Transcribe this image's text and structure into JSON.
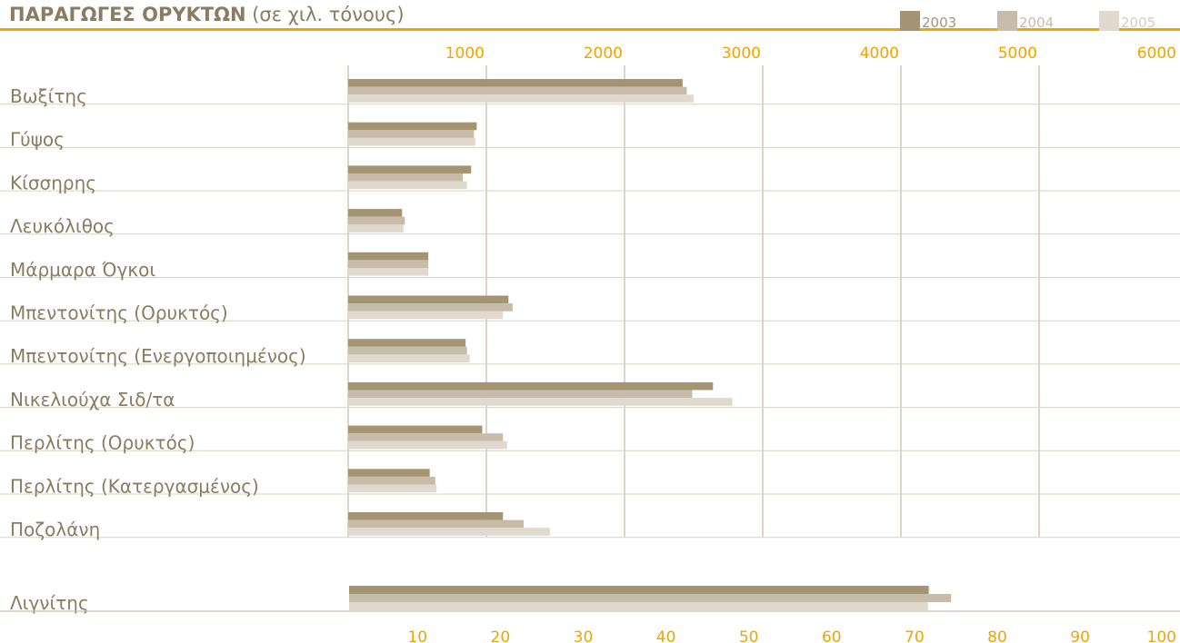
{
  "title_bold": "ΠΑΡΑΓΩΓΕΣ ΟΡΥΚΤΩΝ",
  "title_rest": " (σε χιλ. τόνους)",
  "colors": {
    "accent": "#f0a500",
    "label": "#8a7c62",
    "grid": "#b8ab95"
  },
  "chart_data": [
    {
      "type": "bar",
      "orientation": "horizontal",
      "title": "ΠΑΡΑΓΩΓΕΣ ΟΡΥΚΤΩΝ (σε χιλ. τόνους)",
      "categories": [
        "Βωξίτης",
        "Γύψος",
        "Κίσσηρης",
        "Λευκόλιθος",
        "Μάρμαρα Όγκοι",
        "Μπεντονίτης (Ορυκτός)",
        "Μπεντονίτης (Ενεργοποιημένος)",
        "Νικελιούχα Σιδ/τα",
        "Περλίτης (Ορυκτός)",
        "Περλίτης (Κατεργασμένος)",
        "Ποζολάνη"
      ],
      "series": [
        {
          "name": "2003",
          "color": "#a59474",
          "values": [
            2420,
            930,
            890,
            390,
            580,
            1160,
            850,
            2640,
            970,
            590,
            1120
          ]
        },
        {
          "name": "2004",
          "color": "#c7bca9",
          "values": [
            2450,
            910,
            830,
            410,
            580,
            1190,
            860,
            2490,
            1120,
            630,
            1270
          ]
        },
        {
          "name": "2005",
          "color": "#e1d9cd",
          "values": [
            2500,
            920,
            860,
            400,
            580,
            1120,
            880,
            2780,
            1150,
            640,
            1460
          ]
        }
      ],
      "xlim": [
        0,
        6000
      ],
      "ticks": [
        1000,
        2000,
        3000,
        4000,
        5000,
        6000
      ],
      "tick_labels": [
        "1000",
        "2000",
        "3000",
        "4000",
        "5000",
        "6000"
      ],
      "legend_position": "top-right",
      "grid": true
    },
    {
      "type": "bar",
      "orientation": "horizontal",
      "categories": [
        "Λιγνίτης"
      ],
      "series": [
        {
          "name": "2003",
          "color": "#a59474",
          "values": [
            70
          ]
        },
        {
          "name": "2004",
          "color": "#c7bca9",
          "values": [
            72.7
          ]
        },
        {
          "name": "2005",
          "color": "#e1d9cd",
          "values": [
            69.9
          ]
        }
      ],
      "xlim": [
        0,
        100
      ],
      "ticks": [
        10,
        20,
        30,
        40,
        50,
        60,
        70,
        80,
        90,
        100
      ],
      "tick_labels": [
        "10",
        "20",
        "30",
        "40",
        "50",
        "60",
        "70",
        "80",
        "90",
        "100"
      ]
    }
  ]
}
